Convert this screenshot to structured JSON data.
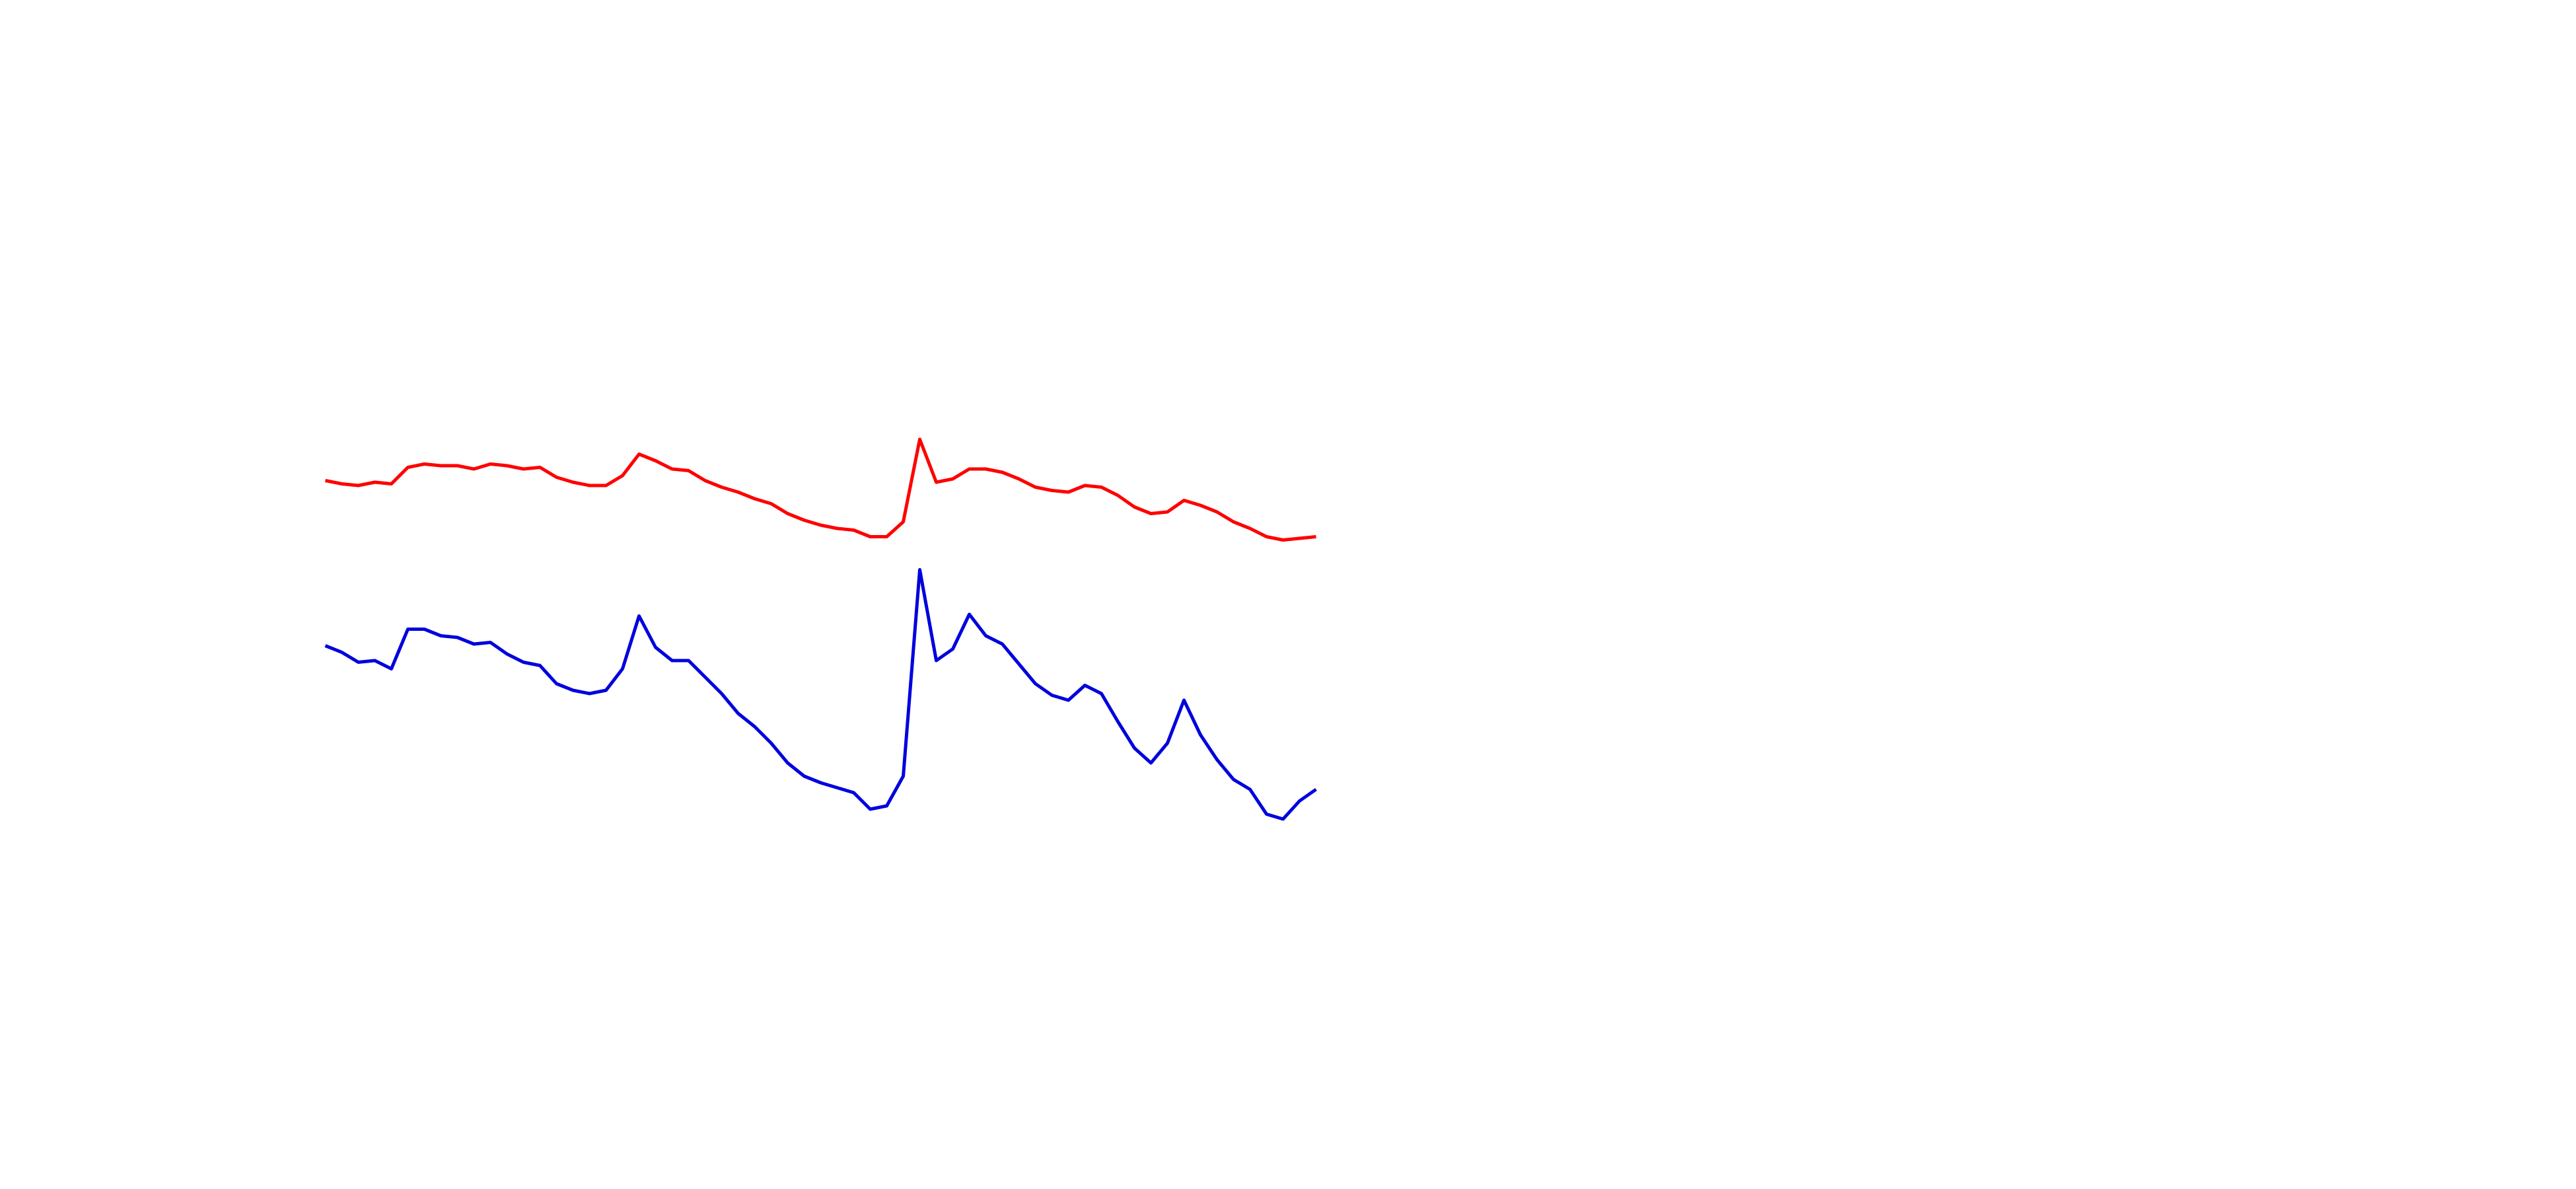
{
  "chart_data": {
    "type": "line",
    "x": [
      197,
      207,
      217,
      227,
      237,
      247,
      257,
      267,
      277,
      287,
      297,
      307,
      317,
      327,
      337,
      347,
      357,
      367,
      377,
      387,
      397,
      407,
      417,
      427,
      437,
      447,
      457,
      467,
      477,
      487,
      497,
      507,
      517,
      527,
      537,
      547,
      557,
      567,
      577,
      587,
      597,
      607,
      617,
      627,
      637,
      647,
      657,
      667,
      677,
      687,
      697,
      707,
      717,
      727,
      737,
      747,
      757,
      767,
      777,
      787,
      797
    ],
    "xlim": [
      0,
      1560
    ],
    "ylim": [
      0,
      720
    ],
    "series": [
      {
        "color": "#ff0000",
        "values": [
          429,
          427,
          426,
          428,
          427,
          437,
          439,
          438,
          438,
          436,
          439,
          438,
          436,
          437,
          431,
          428,
          426,
          426,
          432,
          445,
          441,
          436,
          435,
          429,
          425,
          422,
          418,
          415,
          409,
          405,
          402,
          400,
          399,
          395,
          395,
          404,
          454,
          428,
          430,
          436,
          436,
          434,
          430,
          425,
          423,
          422,
          426,
          425,
          420,
          413,
          409,
          410,
          417,
          414,
          410,
          404,
          400,
          395,
          393,
          394,
          395
        ]
      },
      {
        "color": "#0000dd",
        "values": [
          329,
          325,
          319,
          320,
          315,
          339,
          339,
          335,
          334,
          330,
          331,
          324,
          319,
          317,
          306,
          302,
          300,
          302,
          315,
          347,
          328,
          320,
          320,
          310,
          300,
          288,
          280,
          270,
          258,
          250,
          246,
          243,
          240,
          230,
          232,
          250,
          375,
          320,
          327,
          348,
          335,
          330,
          318,
          306,
          299,
          296,
          305,
          300,
          283,
          267,
          258,
          270,
          296,
          275,
          260,
          248,
          242,
          227,
          224,
          235,
          242
        ]
      }
    ]
  }
}
